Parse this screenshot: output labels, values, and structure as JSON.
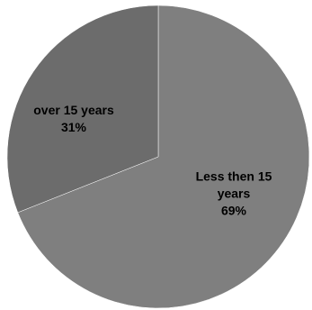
{
  "chart_data": {
    "type": "pie",
    "title": "",
    "legend": "none",
    "slices": [
      {
        "label_lines": [
          "Less then 15",
          "years"
        ],
        "value": 69,
        "percent_label": "69%",
        "color": "#7f7f7f"
      },
      {
        "label_lines": [
          "over 15 years"
        ],
        "value": 31,
        "percent_label": "31%",
        "color": "#6c6c6c"
      }
    ]
  }
}
